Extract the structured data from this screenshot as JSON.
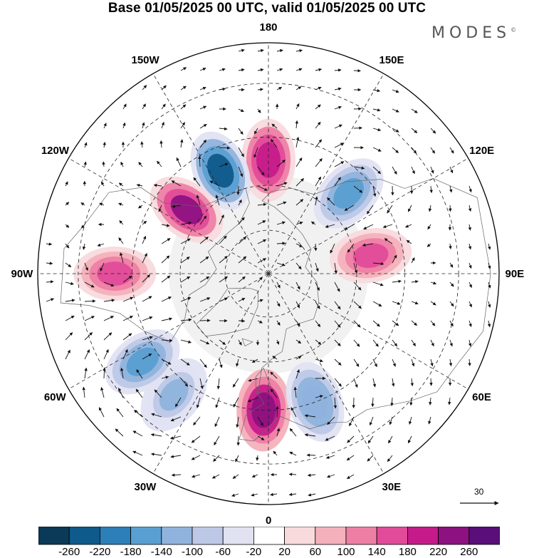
{
  "header": {
    "title": "Base 01/05/2025 00 UTC, valid 01/05/2025 00 UTC",
    "brand": "MODES",
    "brand_mark": "©"
  },
  "map": {
    "projection": "north-polar-stereographic",
    "longitude_labels": [
      {
        "id": "lon-180",
        "text": "180",
        "lon": 180
      },
      {
        "id": "lon-150e",
        "text": "150E",
        "lon": 150
      },
      {
        "id": "lon-120e",
        "text": "120E",
        "lon": 120
      },
      {
        "id": "lon-90e",
        "text": "90E",
        "lon": 90
      },
      {
        "id": "lon-60e",
        "text": "60E",
        "lon": 60
      },
      {
        "id": "lon-30e",
        "text": "30E",
        "lon": 30
      },
      {
        "id": "lon-0",
        "text": "0",
        "lon": 0
      },
      {
        "id": "lon-30w",
        "text": "30W",
        "lon": -30
      },
      {
        "id": "lon-60w",
        "text": "60W",
        "lon": -60
      },
      {
        "id": "lon-90w",
        "text": "90W",
        "lon": -90
      },
      {
        "id": "lon-120w",
        "text": "120W",
        "lon": -120
      },
      {
        "id": "lon-150w",
        "text": "150W",
        "lon": -150
      }
    ],
    "anomaly_centers": [
      {
        "sign": "positive",
        "lon": 180,
        "lat": 52,
        "peak": 200
      },
      {
        "sign": "negative",
        "lon": -155,
        "lat": 52,
        "peak": -240
      },
      {
        "sign": "positive",
        "lon": -128,
        "lat": 55,
        "peak": 230
      },
      {
        "sign": "positive",
        "lon": -90,
        "lat": 40,
        "peak": 150
      },
      {
        "sign": "negative",
        "lon": 135,
        "lat": 52,
        "peak": -180
      },
      {
        "sign": "positive",
        "lon": 100,
        "lat": 55,
        "peak": 140
      },
      {
        "sign": "positive",
        "lon": -2,
        "lat": 45,
        "peak": 240
      },
      {
        "sign": "negative",
        "lon": 20,
        "lat": 45,
        "peak": -140
      },
      {
        "sign": "negative",
        "lon": -38,
        "lat": 40,
        "peak": -120
      },
      {
        "sign": "negative",
        "lon": -55,
        "lat": 40,
        "peak": -150
      }
    ],
    "vector_reference": {
      "value": "30"
    }
  },
  "colorbar": {
    "ticks": [
      "-260",
      "-220",
      "-180",
      "-140",
      "-100",
      "-60",
      "-20",
      "20",
      "60",
      "100",
      "140",
      "180",
      "220",
      "260"
    ],
    "colors": [
      "#0a3a57",
      "#0e5a8a",
      "#2c7fb8",
      "#5a9fd1",
      "#8fb3dd",
      "#bcc8e6",
      "#e0e2f2",
      "#ffffff",
      "#f8dadd",
      "#f4b0bb",
      "#ee7fa4",
      "#e14b99",
      "#c51b8a",
      "#8e1181",
      "#5a0f78"
    ]
  }
}
